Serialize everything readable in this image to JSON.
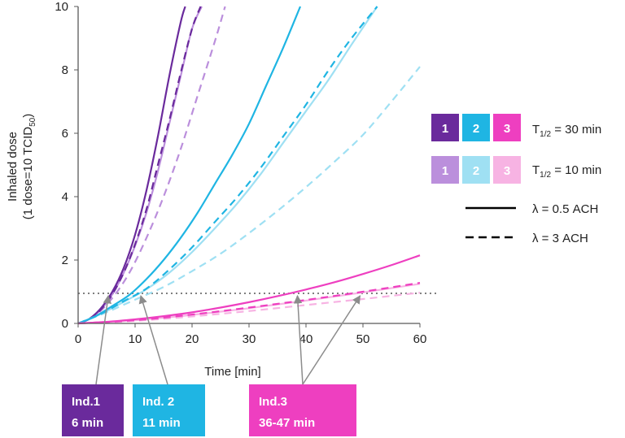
{
  "chart_data": {
    "type": "line",
    "xlabel": "Time [min]",
    "ylabel_line1": "Inhaled dose",
    "ylabel_line2_main": "(1 dose=10 TCID",
    "ylabel_line2_sub": "50",
    "ylabel_line2_end": ")",
    "xlim": [
      0,
      60
    ],
    "ylim": [
      0,
      10
    ],
    "xticks": [
      0,
      10,
      20,
      30,
      40,
      50,
      60
    ],
    "yticks": [
      0,
      2,
      4,
      6,
      8,
      10
    ],
    "threshold": 0.95,
    "colors": {
      "c1": "#6a2a9c",
      "c2": "#1fb5e3",
      "c3": "#ee3fc0",
      "c1_light": "#bb8fdc",
      "c2_light": "#9fe0f3",
      "c3_light": "#f7b3e3",
      "threshold": "#7f7f7f",
      "arrow": "#8c8c8c"
    },
    "series": [
      {
        "name": "Ind.1, T1/2 = 30 min, λ = 0.5 ACH",
        "color_key": "c1",
        "dash": false,
        "x": [
          0,
          2,
          4,
          6,
          8,
          10,
          12,
          14,
          16,
          18,
          18.8
        ],
        "y": [
          0,
          0.15,
          0.48,
          1.0,
          1.75,
          2.8,
          4.2,
          5.9,
          7.8,
          9.5,
          10
        ]
      },
      {
        "name": "Ind.1, T1/2 = 30 min, λ = 3 ACH",
        "color_key": "c1",
        "dash": true,
        "x": [
          0,
          2,
          4,
          6,
          8,
          10,
          12,
          14,
          16,
          18,
          20,
          21.5
        ],
        "y": [
          0,
          0.14,
          0.44,
          0.92,
          1.6,
          2.5,
          3.6,
          5.0,
          6.4,
          7.9,
          9.3,
          10
        ]
      },
      {
        "name": "Ind.1, T1/2 = 10 min, λ = 0.5 ACH",
        "color_key": "c1_light",
        "dash": false,
        "x": [
          0,
          2,
          4,
          6,
          8,
          10,
          12,
          14,
          16,
          18,
          20,
          21.7
        ],
        "y": [
          0,
          0.14,
          0.44,
          0.92,
          1.6,
          2.45,
          3.5,
          4.8,
          6.3,
          7.8,
          9.3,
          10
        ]
      },
      {
        "name": "Ind.1, T1/2 = 10 min, λ = 3 ACH",
        "color_key": "c1_light",
        "dash": true,
        "x": [
          0,
          3,
          6,
          9,
          12,
          15,
          18,
          21,
          24,
          25.8
        ],
        "y": [
          0,
          0.25,
          0.8,
          1.6,
          2.7,
          4.0,
          5.5,
          7.2,
          8.9,
          10
        ]
      },
      {
        "name": "Ind.2, T1/2 = 30 min, λ = 0.5 ACH",
        "color_key": "c2",
        "dash": false,
        "x": [
          0,
          3,
          6,
          9,
          12,
          15,
          18,
          21,
          24,
          27,
          30,
          33,
          36,
          39
        ],
        "y": [
          0,
          0.22,
          0.55,
          0.9,
          1.4,
          2.0,
          2.7,
          3.5,
          4.4,
          5.3,
          6.3,
          7.5,
          8.7,
          10
        ]
      },
      {
        "name": "Ind.2, T1/2 = 30 min, λ = 3 ACH",
        "color_key": "c2",
        "dash": true,
        "x": [
          0,
          4,
          8,
          12,
          16,
          20,
          24,
          28,
          32,
          36,
          40,
          44,
          48,
          52.5
        ],
        "y": [
          0,
          0.3,
          0.7,
          1.1,
          1.7,
          2.4,
          3.2,
          4.0,
          4.9,
          5.9,
          6.9,
          8.0,
          9.0,
          10
        ]
      },
      {
        "name": "Ind.2, T1/2 = 10 min, λ = 0.5 ACH",
        "color_key": "c2_light",
        "dash": false,
        "x": [
          0,
          4,
          8,
          12,
          16,
          20,
          24,
          28,
          32,
          36,
          40,
          44,
          48,
          52.5
        ],
        "y": [
          0,
          0.3,
          0.68,
          1.08,
          1.6,
          2.25,
          3.0,
          3.8,
          4.7,
          5.7,
          6.7,
          7.7,
          8.8,
          10
        ]
      },
      {
        "name": "Ind.2, T1/2 = 10 min, λ = 3 ACH",
        "color_key": "c2_light",
        "dash": true,
        "x": [
          0,
          5,
          10,
          15,
          20,
          25,
          30,
          35,
          40,
          45,
          50,
          55,
          60
        ],
        "y": [
          0,
          0.35,
          0.75,
          1.15,
          1.65,
          2.2,
          2.85,
          3.55,
          4.3,
          5.1,
          5.95,
          7.0,
          8.1
        ]
      },
      {
        "name": "Ind.3, T1/2 = 30 min, λ = 0.5 ACH",
        "color_key": "c3",
        "dash": false,
        "x": [
          0,
          5,
          10,
          15,
          20,
          25,
          30,
          35,
          40,
          45,
          50,
          55,
          60
        ],
        "y": [
          0,
          0.05,
          0.13,
          0.23,
          0.35,
          0.5,
          0.67,
          0.86,
          1.07,
          1.3,
          1.56,
          1.84,
          2.15
        ]
      },
      {
        "name": "Ind.3, T1/2 = 30 min, λ = 3 ACH",
        "color_key": "c3",
        "dash": true,
        "x": [
          0,
          10,
          20,
          30,
          40,
          50,
          60
        ],
        "y": [
          0,
          0.1,
          0.28,
          0.5,
          0.74,
          1.0,
          1.28
        ]
      },
      {
        "name": "Ind.3, T1/2 = 10 min, λ = 0.5 ACH",
        "color_key": "c3_light",
        "dash": false,
        "x": [
          0,
          10,
          20,
          30,
          40,
          50,
          60
        ],
        "y": [
          0,
          0.1,
          0.27,
          0.48,
          0.72,
          0.98,
          1.25
        ]
      },
      {
        "name": "Ind.3, T1/2 = 10 min, λ = 3 ACH",
        "color_key": "c3_light",
        "dash": true,
        "x": [
          0,
          10,
          20,
          30,
          40,
          50,
          60
        ],
        "y": [
          0,
          0.08,
          0.22,
          0.39,
          0.58,
          0.77,
          0.97
        ]
      }
    ],
    "legend": {
      "swatches_dark": [
        "1",
        "2",
        "3"
      ],
      "swatches_light": [
        "1",
        "2",
        "3"
      ],
      "t_half_30_main": "T",
      "t_half_30_sub": "1/2",
      "t_half_30_end": " = 30 min",
      "t_half_10_main": "T",
      "t_half_10_sub": "1/2",
      "t_half_10_end": " = 10 min",
      "solid_label": "λ = 0.5 ACH",
      "dashed_label": "λ = 3 ACH"
    },
    "annotations": [
      {
        "line1": "Ind.1",
        "line2": "6 min",
        "color_key": "c1",
        "targets": [
          {
            "x": 5.3,
            "y": 0.95
          }
        ]
      },
      {
        "line1": "Ind. 2",
        "line2": "11 min",
        "color_key": "c2",
        "targets": [
          {
            "x": 11.0,
            "y": 0.95
          }
        ]
      },
      {
        "line1": "Ind.3",
        "line2": "36-47 min",
        "color_key": "c3",
        "targets": [
          {
            "x": 38.5,
            "y": 0.95
          },
          {
            "x": 49.5,
            "y": 0.95
          }
        ]
      }
    ]
  }
}
